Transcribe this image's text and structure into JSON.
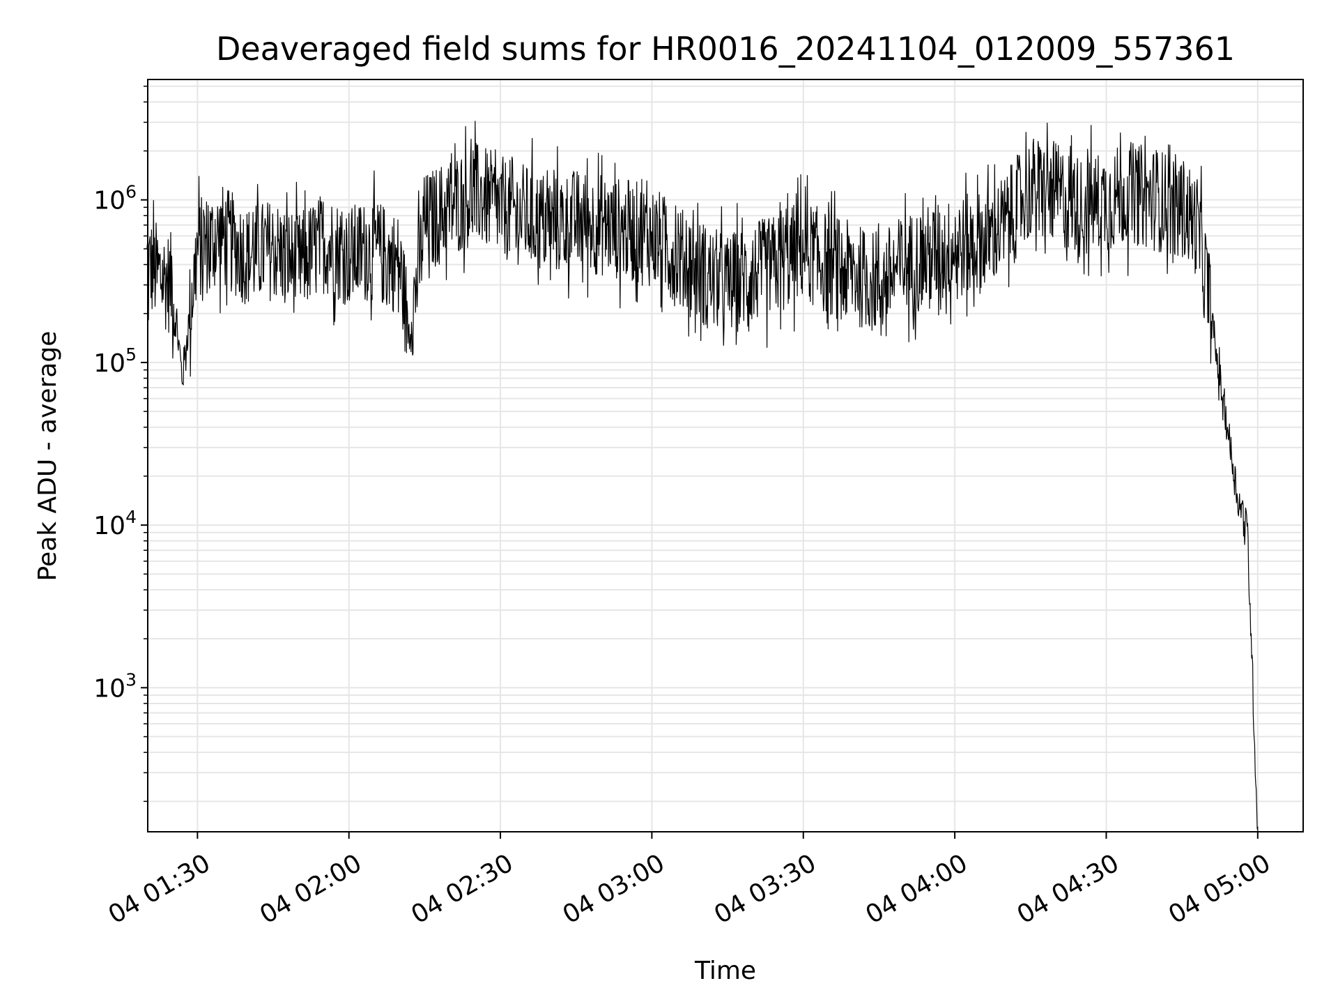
{
  "chart_data": {
    "type": "line",
    "title": "Deaveraged field sums for HR0016_20241104_012009_557361",
    "xlabel": "Time",
    "ylabel": "Peak ADU - average",
    "yscale": "log",
    "grid": true,
    "x_ticks": [
      "04 01:30",
      "04 02:00",
      "04 02:30",
      "04 03:00",
      "04 03:30",
      "04 04:00",
      "04 04:30",
      "04 05:00"
    ],
    "y_ticks": [
      {
        "base": "10",
        "exp": "3",
        "value": 1000
      },
      {
        "base": "10",
        "exp": "4",
        "value": 10000
      },
      {
        "base": "10",
        "exp": "5",
        "value": 100000
      },
      {
        "base": "10",
        "exp": "6",
        "value": 1000000
      }
    ],
    "xlim": [
      "2024-11-04 01:20:09",
      "2024-11-04 05:09:00"
    ],
    "ylim": [
      130,
      5500000
    ],
    "line_color": "#000000",
    "grid_color": "#e6e6e6",
    "series": [
      {
        "x": [
          "2024-11-04 01:20",
          "2024-11-04 01:25",
          "2024-11-04 01:27",
          "2024-11-04 01:30",
          "2024-11-04 01:35",
          "2024-11-04 01:40",
          "2024-11-04 01:45",
          "2024-11-04 01:50",
          "2024-11-04 01:55",
          "2024-11-04 02:00",
          "2024-11-04 02:05",
          "2024-11-04 02:10",
          "2024-11-04 02:12",
          "2024-11-04 02:15",
          "2024-11-04 02:20",
          "2024-11-04 02:25",
          "2024-11-04 02:30",
          "2024-11-04 02:35",
          "2024-11-04 02:40",
          "2024-11-04 02:45",
          "2024-11-04 02:50",
          "2024-11-04 02:55",
          "2024-11-04 03:00",
          "2024-11-04 03:05",
          "2024-11-04 03:10",
          "2024-11-04 03:15",
          "2024-11-04 03:20",
          "2024-11-04 03:25",
          "2024-11-04 03:30",
          "2024-11-04 03:35",
          "2024-11-04 03:40",
          "2024-11-04 03:45",
          "2024-11-04 03:50",
          "2024-11-04 03:55",
          "2024-11-04 04:00",
          "2024-11-04 04:05",
          "2024-11-04 04:10",
          "2024-11-04 04:15",
          "2024-11-04 04:20",
          "2024-11-04 04:25",
          "2024-11-04 04:30",
          "2024-11-04 04:35",
          "2024-11-04 04:40",
          "2024-11-04 04:45",
          "2024-11-04 04:48",
          "2024-11-04 04:50",
          "2024-11-04 04:52",
          "2024-11-04 04:54",
          "2024-11-04 04:56",
          "2024-11-04 04:58",
          "2024-11-04 05:00"
        ],
        "values": [
          400000,
          300000,
          80000,
          500000,
          600000,
          450000,
          500000,
          400000,
          550000,
          450000,
          500000,
          400000,
          150000,
          700000,
          900000,
          1100000,
          900000,
          800000,
          700000,
          750000,
          700000,
          650000,
          600000,
          450000,
          350000,
          300000,
          350000,
          400000,
          500000,
          400000,
          350000,
          300000,
          400000,
          450000,
          500000,
          550000,
          700000,
          1200000,
          1100000,
          900000,
          1000000,
          1100000,
          1000000,
          900000,
          700000,
          300000,
          100000,
          40000,
          15000,
          9000,
          130
        ]
      }
    ]
  }
}
